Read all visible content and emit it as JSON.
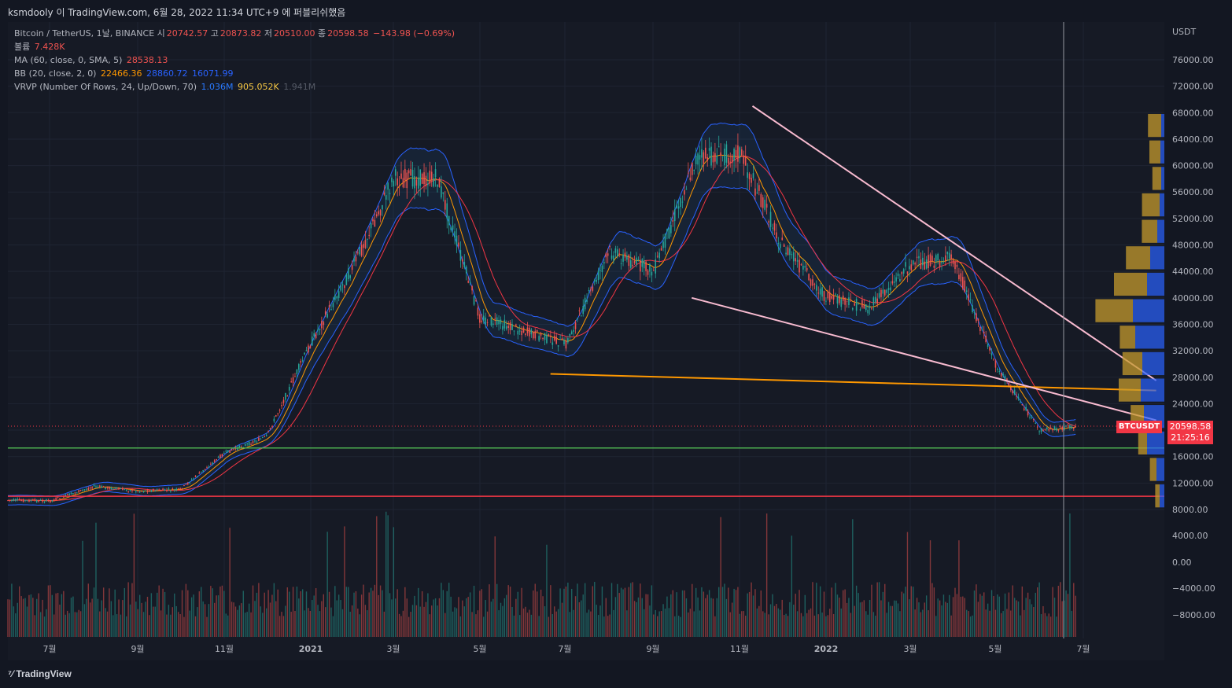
{
  "header": {
    "publish_line": "ksmdooly 이 TradingView.com, 6월 28, 2022 11:34 UTC+9 에 퍼블리쉬했음"
  },
  "legend": {
    "symbol": "Bitcoin / TetherUS, 1날, BINANCE",
    "open_label": "시",
    "open": "20742.57",
    "high_label": "고",
    "high": "20873.82",
    "low_label": "저",
    "low": "20510.00",
    "close_label": "종",
    "close": "20598.58",
    "change": "−143.98 (−0.69%)",
    "volume_label": "볼륨",
    "volume": "7.428K",
    "ma_label": "MA (60, close, 0, SMA, 5)",
    "ma": "28538.13",
    "bb_label": "BB (20, close, 2, 0)",
    "bb_basis": "22466.36",
    "bb_upper": "28860.72",
    "bb_lower": "16071.99",
    "vrvp_label": "VRVP (Number Of Rows, 24, Up/Down, 70)",
    "vrvp_up": "1.036M",
    "vrvp_down": "905.052K",
    "vrvp_total": "1.941M"
  },
  "price_axis": {
    "currency": "USDT"
  },
  "last_price": {
    "symbol": "BTCUSDT",
    "price": "20598.58",
    "countdown": "21:25:16"
  },
  "footer": {
    "brand": "TradingView"
  },
  "colors": {
    "bg": "#131722",
    "up": "#26a69a",
    "down": "#ef5350",
    "ma": "#f23645",
    "bb_basis": "#ff9800",
    "bb_band": "#2962ff",
    "vrvp_up": "#2962ff",
    "vrvp_down": "#c49a2c"
  },
  "chart_data": {
    "type": "line",
    "title": "Bitcoin / TetherUS, 1날, BINANCE",
    "y_ticks": [
      "76000.00",
      "72000.00",
      "68000.00",
      "64000.00",
      "60000.00",
      "56000.00",
      "52000.00",
      "48000.00",
      "44000.00",
      "40000.00",
      "36000.00",
      "32000.00",
      "28000.00",
      "24000.00",
      "20000.00",
      "16000.00",
      "12000.00",
      "8000.00"
    ],
    "volume_ticks": [
      "4000.00",
      "0.00",
      "−4000.00",
      "−8000.00"
    ],
    "x_ticks": [
      "7월",
      "9월",
      "11월",
      "2021",
      "3월",
      "5월",
      "7월",
      "9월",
      "11월",
      "2022",
      "3월",
      "5월",
      "7월"
    ],
    "ylim": [
      8000,
      78000
    ],
    "series": [
      {
        "name": "Bitcoin / TetherUS",
        "x": [
          "2020-06",
          "2020-07",
          "2020-08",
          "2020-09",
          "2020-10",
          "2020-11",
          "2020-12",
          "2021-01",
          "2021-02",
          "2021-03",
          "2021-04",
          "2021-05",
          "2021-06",
          "2021-07",
          "2021-08",
          "2021-09",
          "2021-10",
          "2021-11",
          "2021-12",
          "2022-01",
          "2022-02",
          "2022-03",
          "2022-04",
          "2022-05",
          "2022-06",
          "2022-06-28"
        ],
        "values": [
          9400,
          9300,
          11500,
          10800,
          11000,
          16500,
          19000,
          33000,
          45000,
          58000,
          58000,
          37000,
          35000,
          33000,
          47000,
          44000,
          61000,
          62000,
          48000,
          40000,
          38500,
          45000,
          46000,
          30000,
          20000,
          20598
        ]
      }
    ],
    "reference_lines": [
      {
        "name": "support",
        "value": 10000,
        "color": "#f23645"
      },
      {
        "name": "support",
        "value": 17300,
        "color": "#4caf50"
      }
    ],
    "trendlines": [
      {
        "from": [
          "2021-06-20",
          28500
        ],
        "to": [
          "2022-06-28",
          26000
        ],
        "color": "#ff9800"
      },
      {
        "from": [
          "2021-11-10",
          69000
        ],
        "to": [
          "2022-06-28",
          27500
        ],
        "color": "#f8bbd0"
      },
      {
        "from": [
          "2021-09-28",
          40000
        ],
        "to": [
          "2022-06-28",
          21500
        ],
        "color": "#f8bbd0"
      }
    ],
    "grid": true
  }
}
